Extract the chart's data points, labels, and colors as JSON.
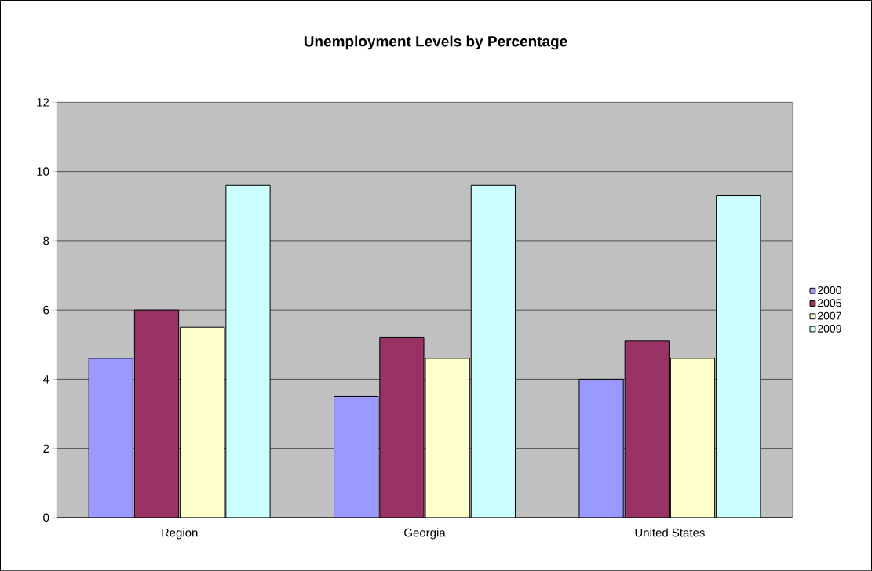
{
  "chart_data": {
    "type": "bar",
    "title": "Unemployment Levels by Percentage",
    "categories": [
      "Region",
      "Georgia",
      "United States"
    ],
    "series": [
      {
        "name": "2000",
        "color": "#9999ff",
        "values": [
          4.6,
          3.5,
          4.0
        ]
      },
      {
        "name": "2005",
        "color": "#993366",
        "values": [
          6.0,
          5.2,
          5.1
        ]
      },
      {
        "name": "2007",
        "color": "#ffffcc",
        "values": [
          5.5,
          4.6,
          4.6
        ]
      },
      {
        "name": "2009",
        "color": "#ccffff",
        "values": [
          9.6,
          9.6,
          9.3
        ]
      }
    ],
    "ylim": [
      0,
      12
    ],
    "yticks": [
      0,
      2,
      4,
      6,
      8,
      10,
      12
    ],
    "grid": "y",
    "legend": "right"
  }
}
